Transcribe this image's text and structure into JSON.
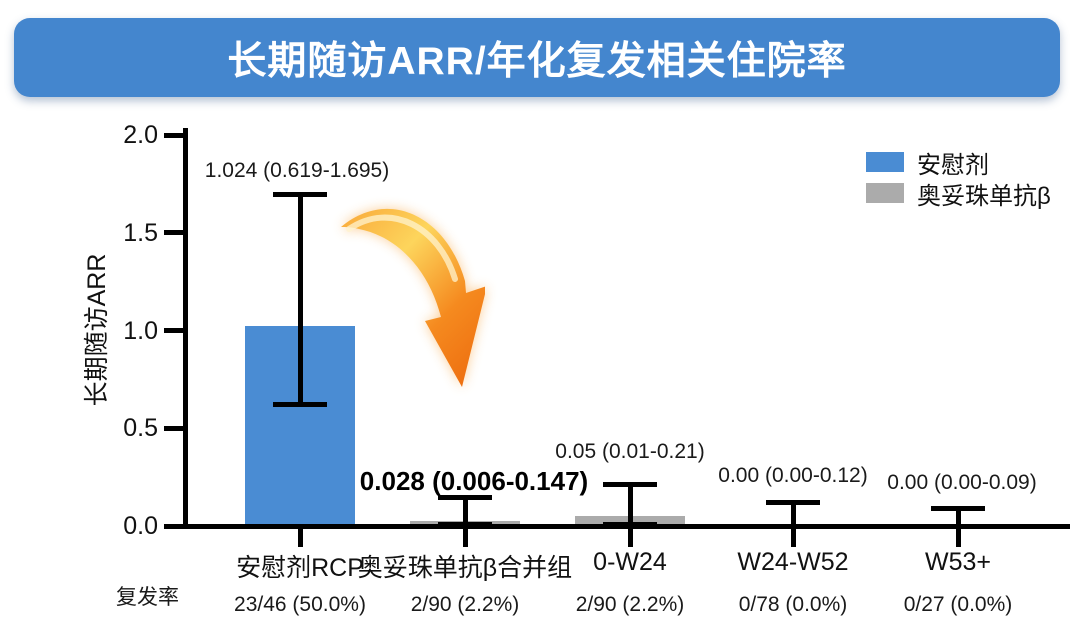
{
  "title": "长期随访ARR/年化复发相关住院率",
  "colors": {
    "banner_blue": "#4486CE",
    "placebo_blue": "#4A8CD3",
    "treatment_gray": "#ABABAB",
    "axis_black": "#000000",
    "arrow_yellow": "#FDD55C",
    "arrow_orange": "#EE6F10"
  },
  "legend": [
    {
      "label": "安慰剂",
      "color": "#4A8CD3"
    },
    {
      "label": "奥妥珠单抗β",
      "color": "#ABABAB"
    }
  ],
  "y_axis": {
    "title": "长期随访ARR",
    "ticks": [
      "2.0",
      "1.5",
      "1.0",
      "0.5",
      "0.0"
    ]
  },
  "footer_label": "复发率",
  "annotations": {
    "arrow": "orange curved arrow pointing down-right from placebo bar to treatment bars"
  },
  "chart_data": {
    "type": "bar",
    "title": "长期随访ARR/年化复发相关住院率",
    "xlabel": "",
    "ylabel": "长期随访ARR",
    "ylim": [
      0.0,
      2.0
    ],
    "y_tick_step": 0.5,
    "grid": false,
    "legend_position": "top-right",
    "categories": [
      "安慰剂RCP",
      "奥妥珠单抗β合并组",
      "0-W24",
      "W24-W52",
      "W53+"
    ],
    "groups": [
      "安慰剂",
      "奥妥珠单抗β",
      "奥妥珠单抗β",
      "奥妥珠单抗β",
      "奥妥珠单抗β"
    ],
    "values": [
      1.024,
      0.028,
      0.05,
      0.0,
      0.0
    ],
    "ci_low": [
      0.619,
      0.006,
      0.01,
      0.0,
      0.0
    ],
    "ci_high": [
      1.695,
      0.147,
      0.21,
      0.12,
      0.09
    ],
    "value_labels": [
      "1.024 (0.619-1.695)",
      "0.028 (0.006-0.147)",
      "0.05 (0.01-0.21)",
      "0.00 (0.00-0.12)",
      "0.00 (0.00-0.09)"
    ],
    "bar_colors": [
      "#4A8CD3",
      "#ABABAB",
      "#ABABAB",
      "#ABABAB",
      "#ABABAB"
    ],
    "relapse_rates": [
      "23/46 (50.0%)",
      "2/90 (2.2%)",
      "2/90 (2.2%)",
      "0/78 (0.0%)",
      "0/27 (0.0%)"
    ],
    "emphasized_label_index": 1
  }
}
